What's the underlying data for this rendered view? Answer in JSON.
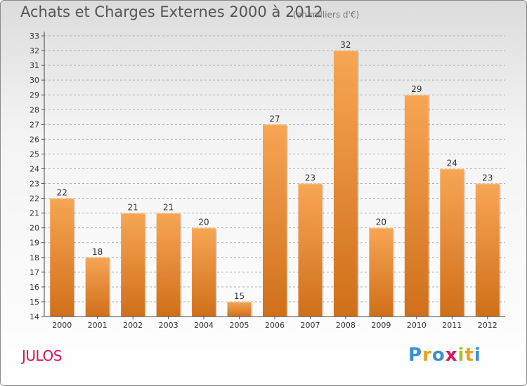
{
  "chart_data": {
    "type": "bar",
    "title": "Achats et Charges Externes 2000 à 2012",
    "subtitle": "(en milliers d'€)",
    "categories": [
      "2000",
      "2001",
      "2002",
      "2003",
      "2004",
      "2005",
      "2006",
      "2007",
      "2008",
      "2009",
      "2010",
      "2011",
      "2012"
    ],
    "values": [
      22,
      18,
      21,
      21,
      20,
      15,
      27,
      23,
      32,
      20,
      29,
      24,
      23
    ],
    "ylim": [
      14,
      33
    ],
    "yticks": [
      "14",
      "15",
      "16",
      "17",
      "18",
      "19",
      "20",
      "21",
      "22",
      "23",
      "24",
      "25",
      "26",
      "27",
      "28",
      "29",
      "30",
      "31",
      "32",
      "33"
    ],
    "grid": true,
    "colors": {
      "bar_top": "#f7a654",
      "bar_bottom": "#d06f1a",
      "grid": "#b0b0b0",
      "label": "#333333"
    }
  },
  "commune": "JULOS",
  "logo": {
    "letters": [
      "P",
      "r",
      "o",
      "x",
      "i",
      "t",
      "i"
    ],
    "colors": [
      "#3a8fd6",
      "#e8a11d",
      "#3a8fd6",
      "#d6155b",
      "#9bc230",
      "#e8a11d",
      "#3a8fd6"
    ]
  }
}
